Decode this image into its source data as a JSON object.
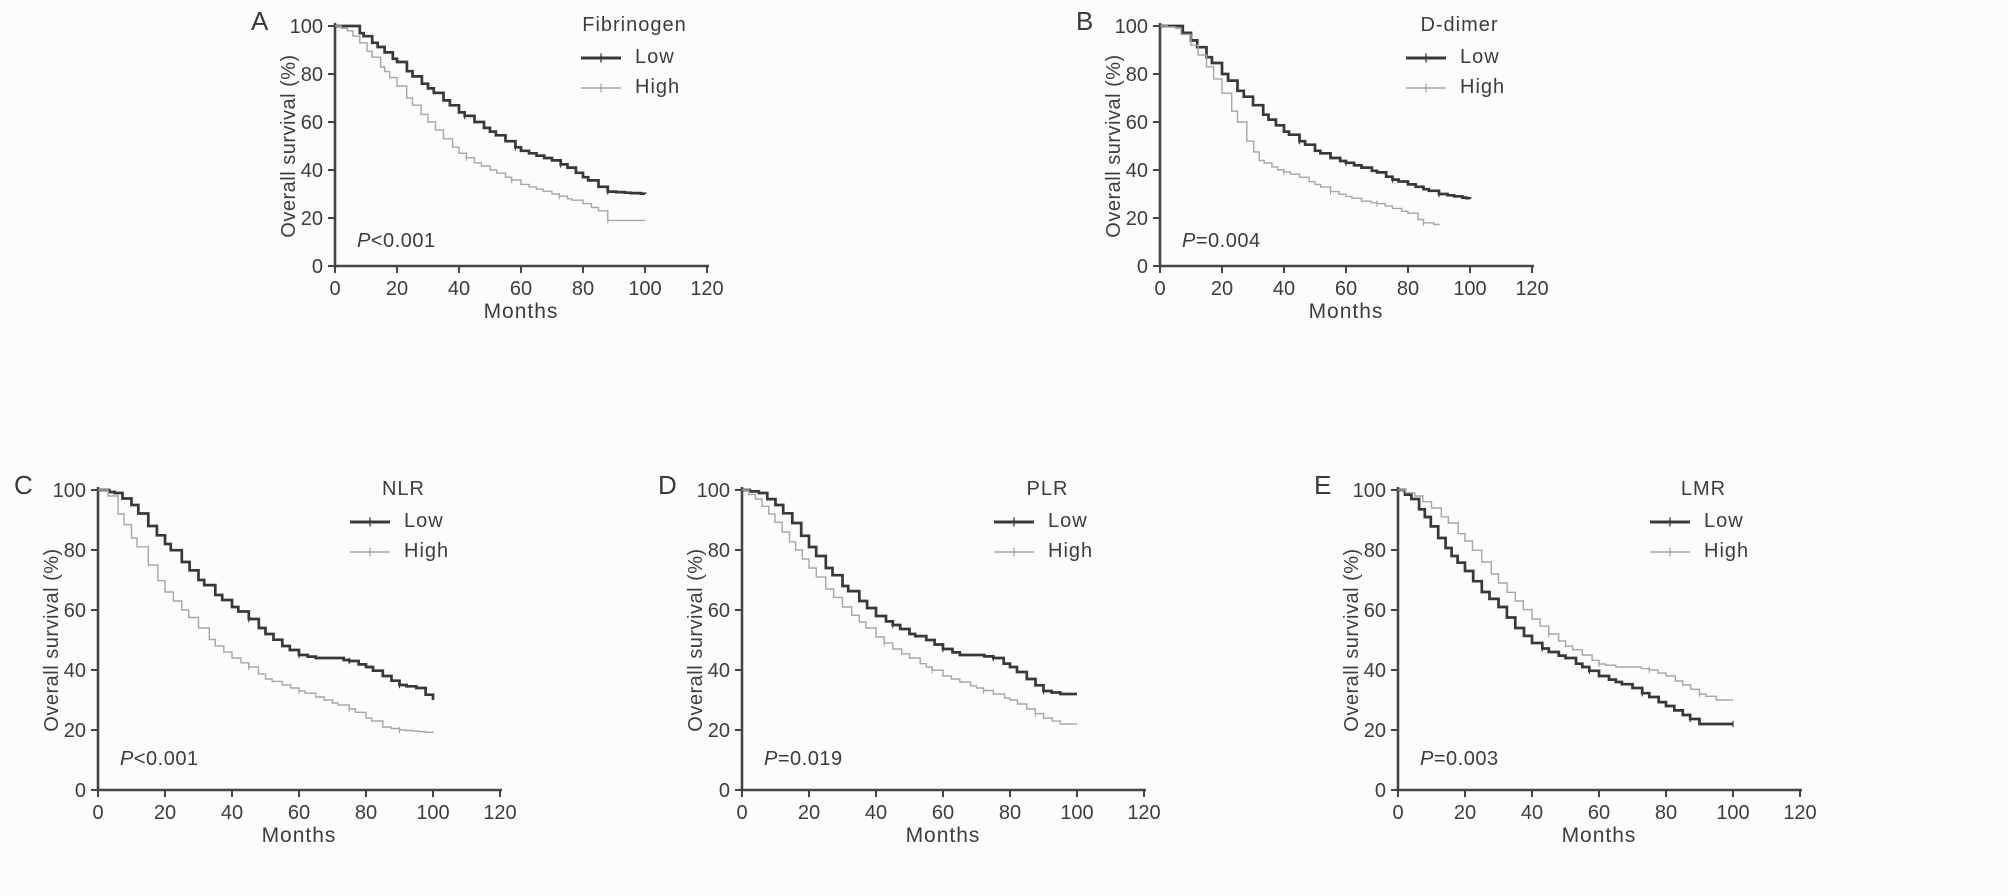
{
  "figure": {
    "background": "#fcfcfc",
    "axis_color": "#454545",
    "text_color": "#3d3d3d",
    "series_colors": {
      "low": "#383838",
      "high": "#a6a6a6"
    },
    "x_ticks": [
      0,
      20,
      40,
      60,
      80,
      100,
      120
    ],
    "y_ticks": [
      0,
      20,
      40,
      60,
      80,
      100
    ]
  },
  "chart_data": [
    {
      "type": "line",
      "panel": "A",
      "title": "Fibrinogen",
      "p_value": "P<0.001",
      "xlabel": "Months",
      "ylabel": "Overall survival (%)",
      "xlim": [
        0,
        120
      ],
      "ylim": [
        0,
        100
      ],
      "legend_position": "top-right",
      "grid": false,
      "series": [
        {
          "name": "Low",
          "color_key": "low",
          "x": [
            0,
            5,
            8,
            12,
            16,
            20,
            25,
            30,
            35,
            40,
            45,
            50,
            55,
            60,
            65,
            70,
            75,
            80,
            85,
            88,
            100
          ],
          "y": [
            100,
            100,
            97,
            93,
            89,
            85,
            79,
            74,
            69,
            64,
            60,
            56,
            52,
            48,
            46,
            44,
            41,
            37,
            33,
            31,
            30
          ]
        },
        {
          "name": "High",
          "color_key": "high",
          "x": [
            0,
            4,
            8,
            12,
            16,
            20,
            25,
            30,
            35,
            40,
            45,
            50,
            55,
            60,
            65,
            70,
            75,
            80,
            85,
            88,
            100
          ],
          "y": [
            100,
            98,
            93,
            87,
            81,
            75,
            67,
            60,
            53,
            47,
            43,
            40,
            37,
            34,
            32,
            30,
            28,
            26,
            23,
            19,
            19
          ]
        }
      ]
    },
    {
      "type": "line",
      "panel": "B",
      "title": "D-dimer",
      "p_value": "P=0.004",
      "xlabel": "Months",
      "ylabel": "Overall survival (%)",
      "xlim": [
        0,
        120
      ],
      "ylim": [
        0,
        100
      ],
      "legend_position": "top-right",
      "grid": false,
      "series": [
        {
          "name": "Low",
          "color_key": "low",
          "x": [
            0,
            5,
            10,
            15,
            20,
            25,
            30,
            35,
            40,
            45,
            50,
            55,
            60,
            65,
            70,
            75,
            80,
            85,
            90,
            100
          ],
          "y": [
            100,
            100,
            94,
            87,
            80,
            73,
            67,
            61,
            56,
            52,
            48,
            45,
            43,
            41,
            39,
            36,
            34,
            32,
            30,
            28
          ]
        },
        {
          "name": "High",
          "color_key": "high",
          "x": [
            0,
            5,
            10,
            15,
            20,
            25,
            28,
            32,
            38,
            45,
            50,
            55,
            60,
            65,
            70,
            75,
            80,
            85,
            90
          ],
          "y": [
            100,
            99,
            92,
            83,
            72,
            60,
            52,
            44,
            40,
            37,
            34,
            31,
            29,
            27,
            26,
            24,
            22,
            18,
            17
          ]
        }
      ]
    },
    {
      "type": "line",
      "panel": "C",
      "title": "NLR",
      "p_value": "P<0.001",
      "xlabel": "Months",
      "ylabel": "Overall survival (%)",
      "xlim": [
        0,
        120
      ],
      "ylim": [
        0,
        100
      ],
      "legend_position": "top-right",
      "grid": false,
      "series": [
        {
          "name": "Low",
          "color_key": "low",
          "x": [
            0,
            5,
            10,
            15,
            20,
            25,
            30,
            35,
            40,
            45,
            50,
            55,
            60,
            65,
            70,
            75,
            80,
            85,
            90,
            95,
            100
          ],
          "y": [
            100,
            99,
            95,
            88,
            82,
            76,
            70,
            65,
            61,
            57,
            52,
            48,
            45,
            44,
            44,
            43,
            41,
            38,
            35,
            34,
            30
          ]
        },
        {
          "name": "High",
          "color_key": "high",
          "x": [
            0,
            3,
            6,
            10,
            15,
            20,
            25,
            30,
            35,
            40,
            45,
            50,
            55,
            60,
            65,
            70,
            75,
            80,
            85,
            90,
            100
          ],
          "y": [
            100,
            98,
            92,
            84,
            75,
            66,
            60,
            54,
            48,
            44,
            41,
            37,
            35,
            33,
            31,
            29,
            27,
            24,
            21,
            20,
            19
          ]
        }
      ]
    },
    {
      "type": "line",
      "panel": "D",
      "title": "PLR",
      "p_value": "P=0.019",
      "xlabel": "Months",
      "ylabel": "Overall survival (%)",
      "xlim": [
        0,
        120
      ],
      "ylim": [
        0,
        100
      ],
      "legend_position": "top-right",
      "grid": false,
      "series": [
        {
          "name": "Low",
          "color_key": "low",
          "x": [
            0,
            5,
            10,
            15,
            20,
            25,
            30,
            35,
            40,
            45,
            50,
            55,
            60,
            65,
            70,
            75,
            80,
            85,
            90,
            95,
            100
          ],
          "y": [
            100,
            99,
            95,
            89,
            81,
            74,
            68,
            63,
            58,
            55,
            52,
            50,
            47,
            45,
            45,
            44,
            41,
            37,
            33,
            32,
            32
          ]
        },
        {
          "name": "High",
          "color_key": "high",
          "x": [
            0,
            4,
            8,
            12,
            16,
            20,
            25,
            30,
            35,
            40,
            45,
            50,
            55,
            60,
            65,
            70,
            75,
            80,
            85,
            90,
            95,
            100
          ],
          "y": [
            100,
            97,
            92,
            86,
            80,
            74,
            67,
            61,
            56,
            51,
            47,
            44,
            41,
            38,
            36,
            34,
            32,
            30,
            27,
            24,
            22,
            22
          ]
        }
      ]
    },
    {
      "type": "line",
      "panel": "E",
      "title": "LMR",
      "p_value": "P=0.003",
      "xlabel": "Months",
      "ylabel": "Overall survival (%)",
      "xlim": [
        0,
        120
      ],
      "ylim": [
        0,
        100
      ],
      "legend_position": "top-right",
      "grid": false,
      "series": [
        {
          "name": "Low",
          "color_key": "low",
          "x": [
            0,
            4,
            8,
            12,
            16,
            20,
            25,
            30,
            35,
            40,
            45,
            50,
            55,
            60,
            65,
            70,
            75,
            80,
            85,
            90,
            100
          ],
          "y": [
            100,
            97,
            91,
            84,
            78,
            73,
            66,
            61,
            54,
            49,
            46,
            44,
            41,
            38,
            36,
            34,
            31,
            28,
            25,
            22,
            22
          ]
        },
        {
          "name": "High",
          "color_key": "high",
          "x": [
            0,
            5,
            10,
            15,
            20,
            25,
            30,
            35,
            40,
            45,
            50,
            55,
            60,
            65,
            70,
            75,
            80,
            85,
            90,
            95,
            100
          ],
          "y": [
            100,
            98,
            94,
            89,
            83,
            76,
            69,
            63,
            57,
            52,
            48,
            45,
            42,
            41,
            41,
            40,
            38,
            35,
            32,
            30,
            30
          ]
        }
      ]
    }
  ]
}
